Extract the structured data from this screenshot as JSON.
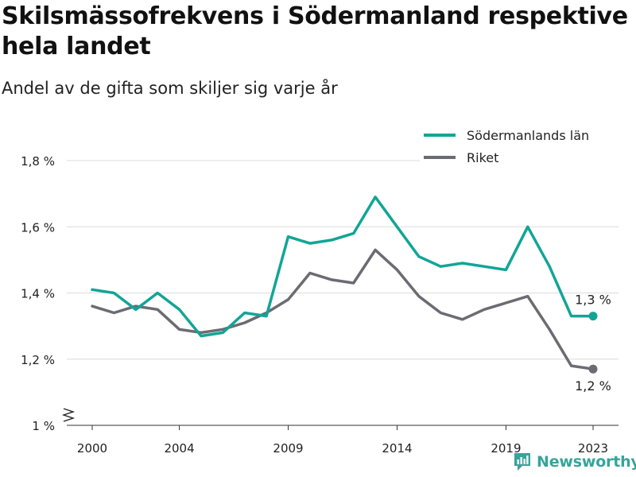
{
  "title": "Skilsmässofrekvens i Södermanland respektive hela landet",
  "subtitle": "Andel av de gifta som skiljer sig varje år",
  "brand": {
    "name": "Newsworthy",
    "icon": "newsworthy-logo-icon",
    "color": "#35a59a"
  },
  "chart_data": {
    "type": "line",
    "title": "Skilsmässofrekvens i Södermanland respektive hela landet",
    "subtitle": "Andel av de gifta som skiljer sig varje år",
    "xlabel": "",
    "ylabel": "",
    "x": [
      2000,
      2001,
      2002,
      2003,
      2004,
      2005,
      2006,
      2007,
      2008,
      2009,
      2010,
      2011,
      2012,
      2013,
      2014,
      2015,
      2016,
      2017,
      2018,
      2019,
      2020,
      2021,
      2022,
      2023
    ],
    "x_ticks": [
      2000,
      2004,
      2009,
      2014,
      2019,
      2023
    ],
    "y_ticks": [
      1.0,
      1.2,
      1.4,
      1.6,
      1.8
    ],
    "y_tick_labels": [
      "1 %",
      "1,2 %",
      "1,4 %",
      "1,6 %",
      "1,8 %"
    ],
    "ylim": [
      1.0,
      1.8
    ],
    "xlim": [
      2000,
      2023
    ],
    "y_axis_break": true,
    "grid": "horizontal",
    "legend_position": "top-right",
    "series": [
      {
        "name": "Södermanlands län",
        "color": "#12a596",
        "values": [
          1.41,
          1.4,
          1.35,
          1.4,
          1.35,
          1.27,
          1.28,
          1.34,
          1.33,
          1.57,
          1.55,
          1.56,
          1.58,
          1.69,
          1.6,
          1.51,
          1.48,
          1.49,
          1.48,
          1.47,
          1.6,
          1.48,
          1.33,
          1.33
        ],
        "end_label": "1,3 %"
      },
      {
        "name": "Riket",
        "color": "#6b6b72",
        "values": [
          1.36,
          1.34,
          1.36,
          1.35,
          1.29,
          1.28,
          1.29,
          1.31,
          1.34,
          1.38,
          1.46,
          1.44,
          1.43,
          1.53,
          1.47,
          1.39,
          1.34,
          1.32,
          1.35,
          1.37,
          1.39,
          1.29,
          1.18,
          1.17
        ],
        "end_label": "1,2 %"
      }
    ]
  }
}
